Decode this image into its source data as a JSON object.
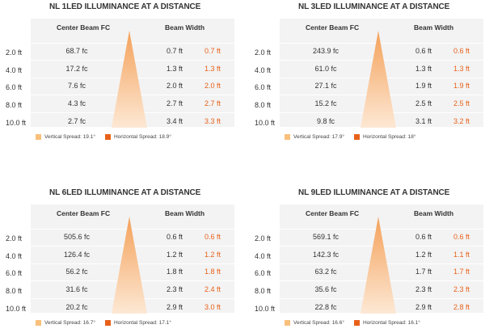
{
  "colors": {
    "vertical": "#f9c07c",
    "horizontal": "#e8611a",
    "cone_top": "#f4a15a",
    "background": "#f3f3f3"
  },
  "distances": [
    "2.0 ft",
    "4.0 ft",
    "6.0 ft",
    "8.0 ft",
    "10.0 ft"
  ],
  "header_fc": "Center Beam FC",
  "header_bw": "Beam Width",
  "panels": [
    {
      "title": "NL 1LED ILLUMINANCE AT A DISTANCE",
      "fc": [
        "68.7 fc",
        "17.2 fc",
        "7.6 fc",
        "4.3 fc",
        "2.7 fc"
      ],
      "bw_v": [
        "0.7 ft",
        "1.3 ft",
        "2.0 ft",
        "2.7 ft",
        "3.4 ft"
      ],
      "bw_h": [
        "0.7 ft",
        "1.3 ft",
        "2.0 ft",
        "2.7 ft",
        "3.3 ft"
      ],
      "legend_v": "Vertical Spread: 19.1°",
      "legend_h": "Horizontal  Spread: 18.9°"
    },
    {
      "title": "NL 3LED ILLUMINANCE AT A DISTANCE",
      "fc": [
        "243.9 fc",
        "61.0 fc",
        "27.1 fc",
        "15.2 fc",
        "9.8 fc"
      ],
      "bw_v": [
        "0.6 ft",
        "1.3 ft",
        "1.9 ft",
        "2.5 ft",
        "3.1 ft"
      ],
      "bw_h": [
        "0.6 ft",
        "1.3 ft",
        "1.9 ft",
        "2.5 ft",
        "3.2 ft"
      ],
      "legend_v": "Vertical Spread: 17.9°",
      "legend_h": "Horizontal  Spread: 18°"
    },
    {
      "title": "NL 6LED ILLUMINANCE AT A DISTANCE",
      "fc": [
        "505.6 fc",
        "126.4 fc",
        "56.2 fc",
        "31.6 fc",
        "20.2 fc"
      ],
      "bw_v": [
        "0.6 ft",
        "1.2 ft",
        "1.8 ft",
        "2.3 ft",
        "2.9 ft"
      ],
      "bw_h": [
        "0.6 ft",
        "1.2 ft",
        "1.8 ft",
        "2.4 ft",
        "3.0 ft"
      ],
      "legend_v": "Vertical Spread: 16.7°",
      "legend_h": "Horizontal  Spread: 17.1°"
    },
    {
      "title": "NL 9LED ILLUMINANCE AT A DISTANCE",
      "fc": [
        "569.1 fc",
        "142.3 fc",
        "63.2 fc",
        "35.6 fc",
        "22.8 fc"
      ],
      "bw_v": [
        "0.6 ft",
        "1.2 ft",
        "1.7 ft",
        "2.3 ft",
        "2.9 ft"
      ],
      "bw_h": [
        "0.6 ft",
        "1.1 ft",
        "1.7 ft",
        "2.3 ft",
        "2.8 ft"
      ],
      "legend_v": "Vertical Spread: 16.6°",
      "legend_h": "Horizontal  Spread: 16.1°"
    }
  ]
}
